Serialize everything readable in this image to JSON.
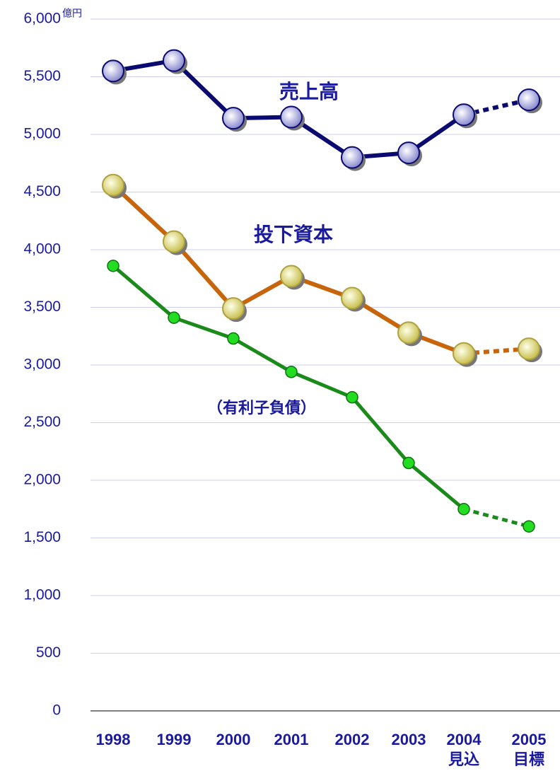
{
  "chart_data": {
    "type": "line",
    "unit_label": "億円",
    "categories": [
      [
        "1998"
      ],
      [
        "1999"
      ],
      [
        "2000"
      ],
      [
        "2001"
      ],
      [
        "2002"
      ],
      [
        "2003"
      ],
      [
        "2004",
        "見込"
      ],
      [
        "2005",
        "目標"
      ]
    ],
    "dashed_from_index": 6,
    "series": [
      {
        "name": "売上高",
        "color": "#0a0a70",
        "marker_color": "#d8d8f4",
        "marker_size": "large",
        "values": [
          5550,
          5640,
          5140,
          5150,
          4800,
          4840,
          5170,
          5300
        ]
      },
      {
        "name": "投下資本",
        "color": "#c8640a",
        "marker_color": "#f0f0a0",
        "marker_size": "large",
        "values": [
          4560,
          4070,
          3490,
          3770,
          3580,
          3280,
          3100,
          3140
        ]
      },
      {
        "name": "（有利子負債）",
        "color": "#1a8a1a",
        "marker_color": "#22dd22",
        "marker_size": "small",
        "values": [
          3860,
          3410,
          3230,
          2940,
          2720,
          2150,
          1750,
          1600
        ]
      }
    ],
    "ylim": [
      0,
      6000
    ],
    "yticks": [
      0,
      500,
      {
        "value": 1000,
        "label": "1,000"
      },
      {
        "value": 1500,
        "label": "1,500"
      },
      {
        "value": 2000,
        "label": "2,000"
      },
      {
        "value": 2500,
        "label": "2,500"
      },
      {
        "value": 3000,
        "label": "3,000"
      },
      {
        "value": 3500,
        "label": "3,500"
      },
      {
        "value": 4000,
        "label": "4,000"
      },
      {
        "value": 4500,
        "label": "4,500"
      },
      {
        "value": 5000,
        "label": "5,000"
      },
      {
        "value": 5500,
        "label": "5,500"
      },
      {
        "value": 6000,
        "label": "6,000"
      }
    ],
    "grid": true
  }
}
